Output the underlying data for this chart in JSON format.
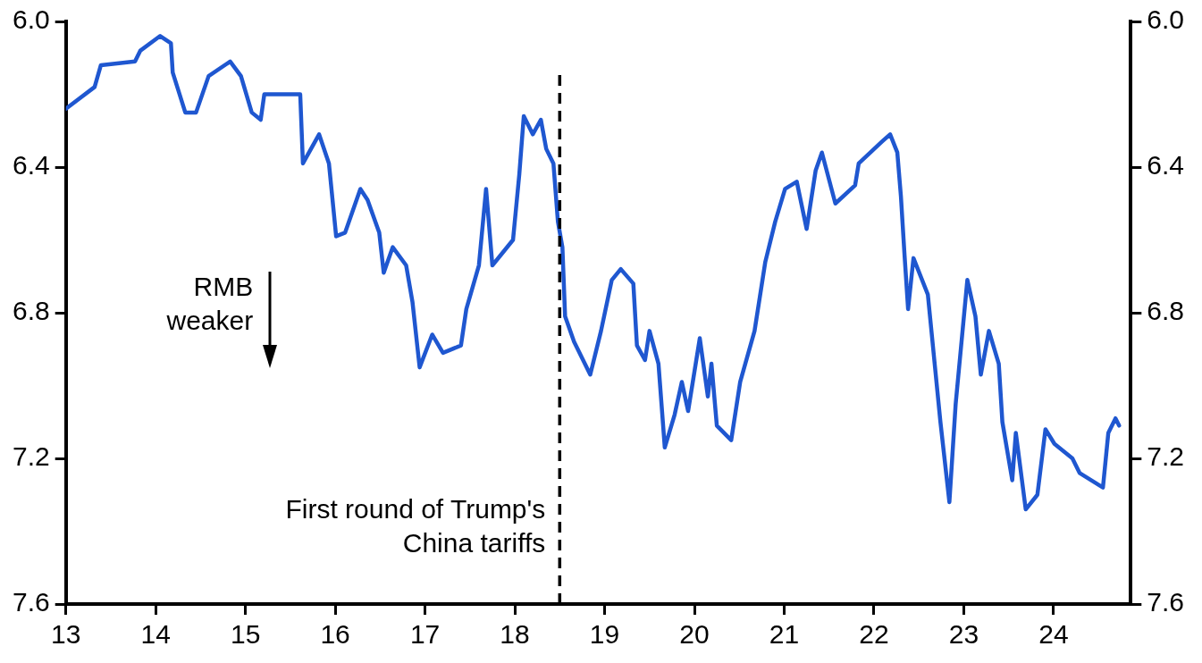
{
  "chart_data": {
    "type": "line",
    "xlim": [
      13,
      24.86
    ],
    "xticks": [
      13,
      14,
      15,
      16,
      17,
      18,
      19,
      20,
      21,
      22,
      23,
      24
    ],
    "ylim": [
      7.6,
      6.0
    ],
    "yticks": [
      {
        "value": 6,
        "label": "6.0"
      },
      {
        "value": 6.4,
        "label": "6.4"
      },
      {
        "value": 6.8,
        "label": "6.8"
      },
      {
        "value": 7.2,
        "label": "7.2"
      },
      {
        "value": 7.6,
        "label": "7.6"
      }
    ],
    "y2lim": [
      7.6,
      6.0
    ],
    "y2ticks": [
      {
        "value": 6,
        "label": "6.0"
      },
      {
        "value": 6.4,
        "label": "6.4"
      },
      {
        "value": 6.8,
        "label": "6.8"
      },
      {
        "value": 7.2,
        "label": "7.2"
      },
      {
        "value": 7.6,
        "label": "7.6"
      }
    ],
    "grid": false,
    "legend": false,
    "marker": "none",
    "line_style": "solid",
    "series": [
      {
        "color": "#1f57d0",
        "x": [
          13.0,
          13.32,
          13.39,
          13.77,
          13.83,
          14.05,
          14.17,
          14.19,
          14.33,
          14.45,
          14.59,
          14.83,
          14.95,
          15.07,
          15.17,
          15.21,
          15.61,
          15.64,
          15.82,
          15.93,
          16.01,
          16.11,
          16.28,
          16.36,
          16.49,
          16.54,
          16.64,
          16.79,
          16.86,
          16.94,
          17.08,
          17.2,
          17.4,
          17.46,
          17.6,
          17.68,
          17.75,
          17.98,
          18.05,
          18.1,
          18.2,
          18.29,
          18.35,
          18.43,
          18.48,
          18.53,
          18.56,
          18.66,
          18.84,
          18.96,
          19.08,
          19.18,
          19.32,
          19.36,
          19.45,
          19.5,
          19.6,
          19.67,
          19.78,
          19.86,
          19.93,
          20.06,
          20.15,
          20.19,
          20.25,
          20.41,
          20.51,
          20.67,
          20.79,
          20.9,
          21.01,
          21.14,
          21.25,
          21.35,
          21.42,
          21.57,
          21.79,
          21.83,
          22.09,
          22.18,
          22.26,
          22.3,
          22.34,
          22.38,
          22.44,
          22.6,
          22.68,
          22.74,
          22.84,
          22.91,
          23.04,
          23.13,
          23.19,
          23.28,
          23.39,
          23.43,
          23.54,
          23.58,
          23.69,
          23.82,
          23.91,
          24.01,
          24.21,
          24.29,
          24.55,
          24.61,
          24.69,
          24.73
        ],
        "values": [
          6.24,
          6.18,
          6.12,
          6.11,
          6.08,
          6.04,
          6.06,
          6.14,
          6.25,
          6.25,
          6.15,
          6.11,
          6.15,
          6.25,
          6.27,
          6.2,
          6.2,
          6.39,
          6.31,
          6.39,
          6.59,
          6.58,
          6.46,
          6.49,
          6.58,
          6.69,
          6.62,
          6.67,
          6.77,
          6.95,
          6.86,
          6.91,
          6.89,
          6.79,
          6.67,
          6.46,
          6.67,
          6.6,
          6.42,
          6.26,
          6.31,
          6.27,
          6.35,
          6.39,
          6.55,
          6.62,
          6.81,
          6.88,
          6.97,
          6.85,
          6.71,
          6.68,
          6.72,
          6.89,
          6.93,
          6.85,
          6.94,
          7.17,
          7.08,
          6.99,
          7.07,
          6.87,
          7.03,
          6.94,
          7.11,
          7.15,
          6.99,
          6.85,
          6.66,
          6.55,
          6.46,
          6.44,
          6.57,
          6.41,
          6.36,
          6.5,
          6.45,
          6.39,
          6.33,
          6.31,
          6.36,
          6.48,
          6.64,
          6.79,
          6.65,
          6.75,
          6.95,
          7.1,
          7.32,
          7.05,
          6.71,
          6.81,
          6.97,
          6.85,
          6.94,
          7.1,
          7.26,
          7.13,
          7.34,
          7.3,
          7.12,
          7.16,
          7.2,
          7.24,
          7.28,
          7.13,
          7.09,
          7.11
        ]
      }
    ],
    "ref_lines": [
      {
        "axis": "x",
        "value": 18.5,
        "label": "First round of Trump's China tariffs",
        "color": "#000000",
        "line_style": "dashed"
      }
    ],
    "annotations": [
      "RMB weaker"
    ]
  }
}
